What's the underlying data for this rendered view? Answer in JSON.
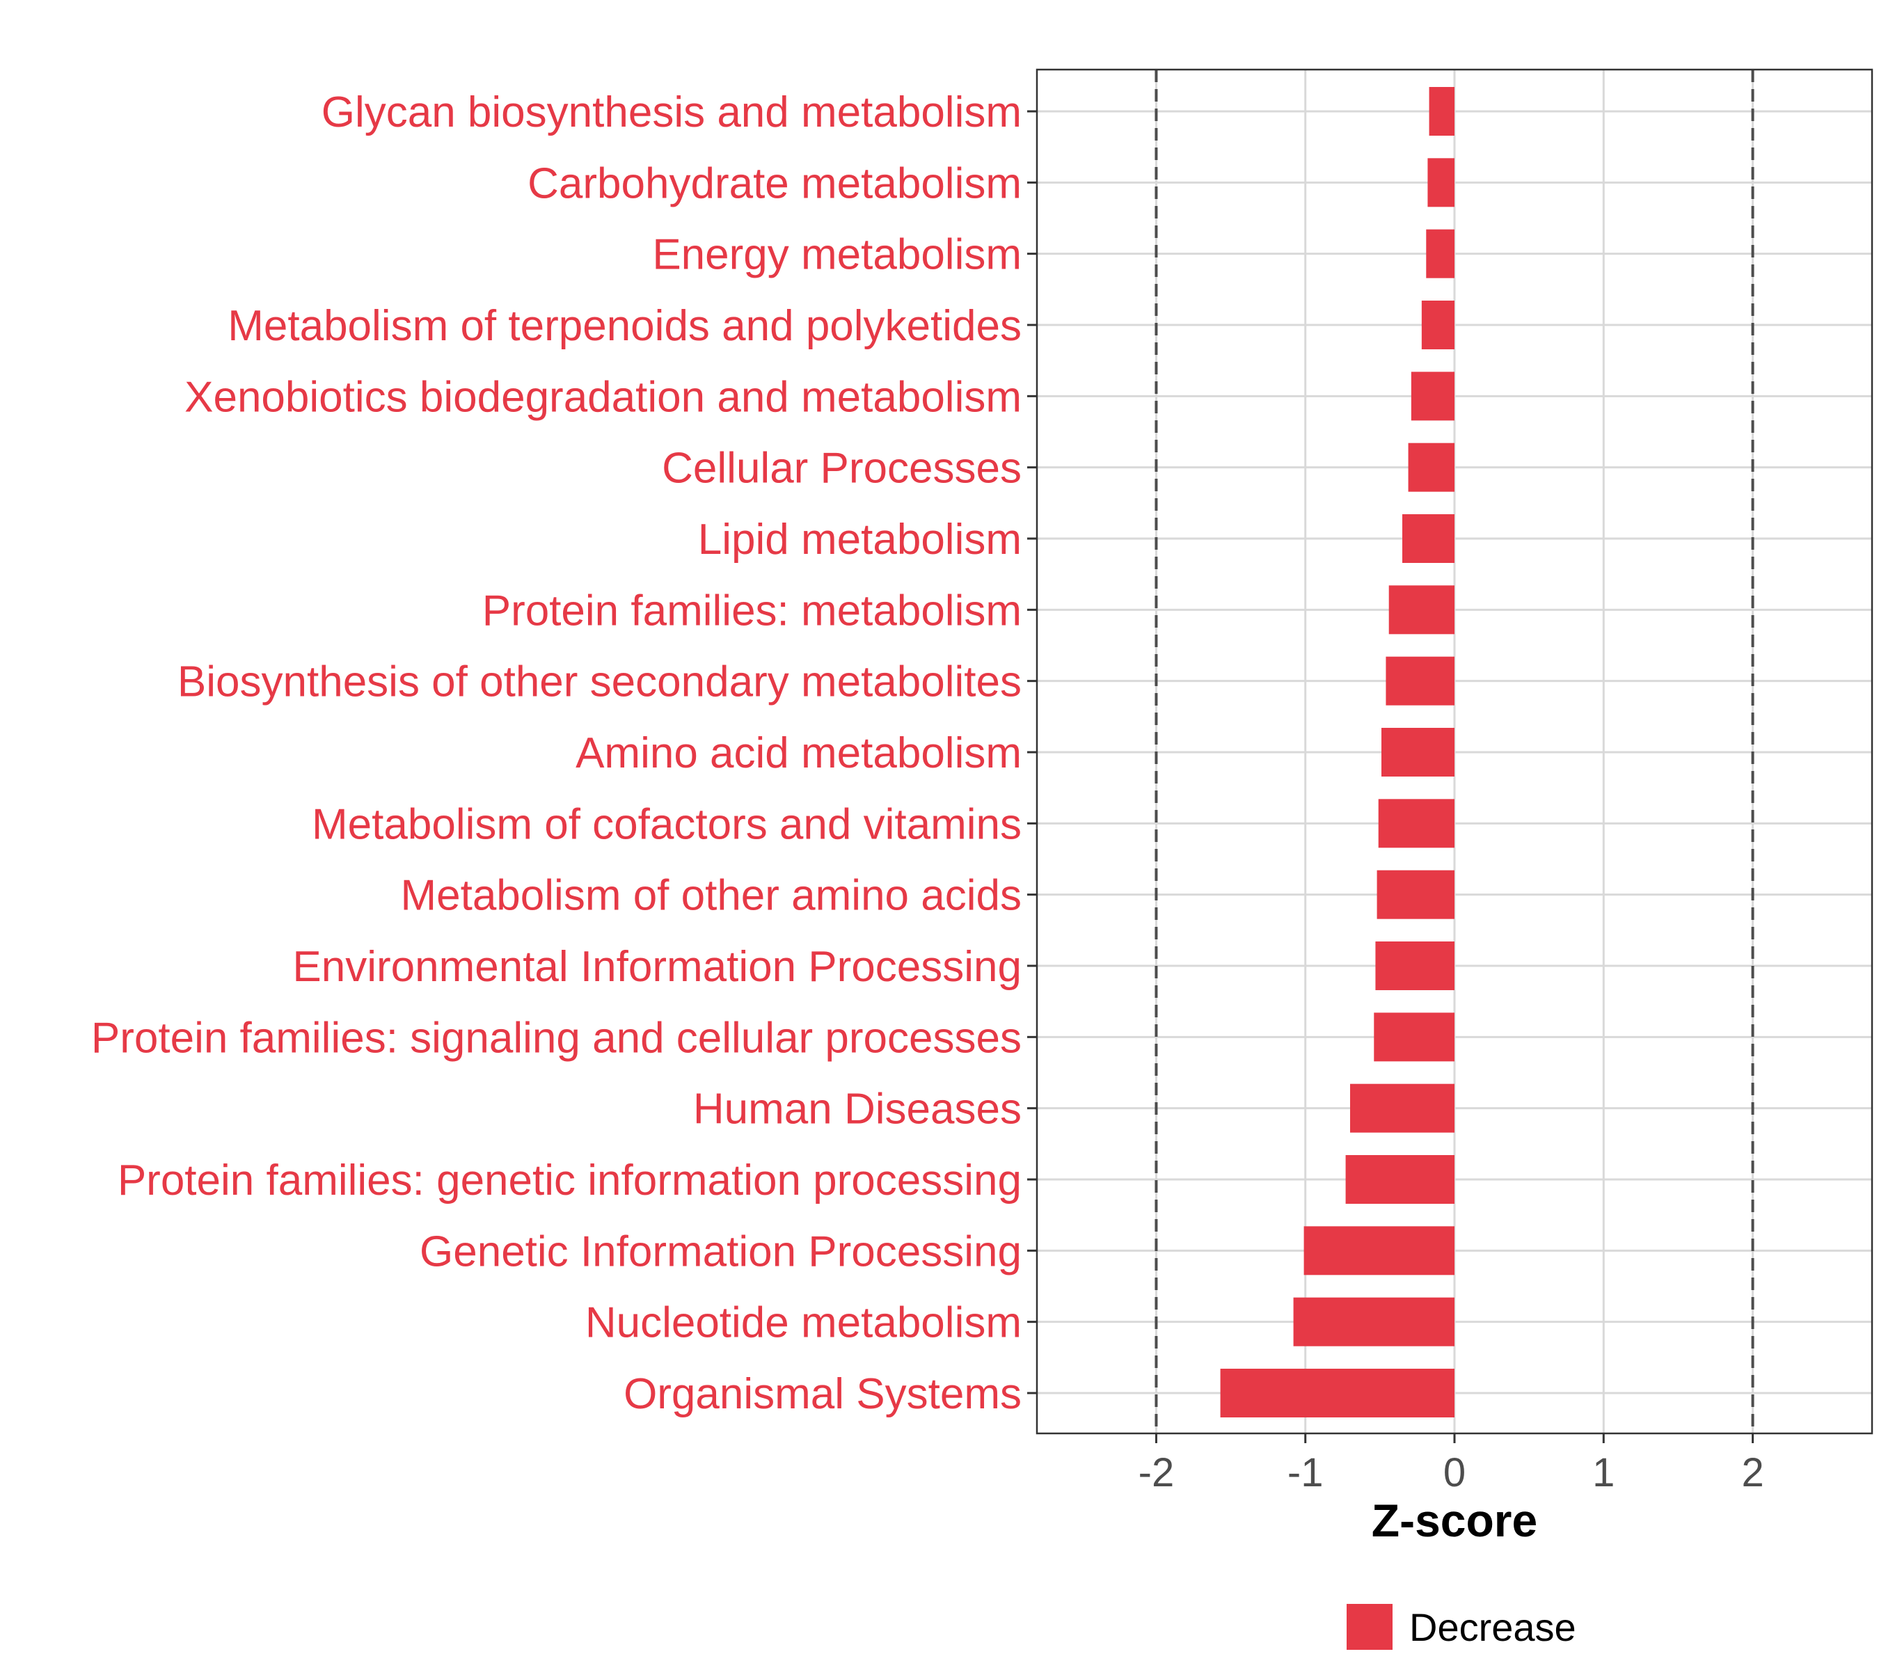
{
  "colors": {
    "decrease": "#E63946",
    "category_label": "#E63946",
    "tick_label": "#4D4D4D",
    "grid": "#D9D9D9",
    "panel_border": "#333333",
    "reference_line": "#4D4D4D"
  },
  "chart_data": {
    "type": "bar",
    "orientation": "horizontal",
    "categories": [
      "Glycan biosynthesis and metabolism",
      "Carbohydrate metabolism",
      "Energy metabolism",
      "Metabolism of terpenoids and polyketides",
      "Xenobiotics biodegradation and metabolism",
      "Cellular Processes",
      "Lipid metabolism",
      "Protein families: metabolism",
      "Biosynthesis of other secondary metabolites",
      "Amino acid metabolism",
      "Metabolism of cofactors and vitamins",
      "Metabolism of other amino acids",
      "Environmental Information Processing",
      "Protein families: signaling and cellular processes",
      "Human Diseases",
      "Protein families: genetic information processing",
      "Genetic Information Processing",
      "Nucleotide metabolism",
      "Organismal Systems"
    ],
    "series": [
      {
        "name": "Decrease",
        "values": [
          -0.17,
          -0.18,
          -0.19,
          -0.22,
          -0.29,
          -0.31,
          -0.35,
          -0.44,
          -0.46,
          -0.49,
          -0.51,
          -0.52,
          -0.53,
          -0.54,
          -0.7,
          -0.73,
          -1.01,
          -1.08,
          -1.57
        ]
      }
    ],
    "title": "",
    "xlabel": "Z-score",
    "ylabel": "",
    "xlim": [
      -2.8,
      2.8
    ],
    "x_ticks": [
      -2,
      -1,
      0,
      1,
      2
    ],
    "x_tick_labels": [
      "-2",
      "-1",
      "0",
      "1",
      "2"
    ],
    "reference_lines": [
      -2,
      2
    ],
    "grid": true,
    "legend": {
      "position": "bottom",
      "entries": [
        "Decrease"
      ]
    }
  }
}
